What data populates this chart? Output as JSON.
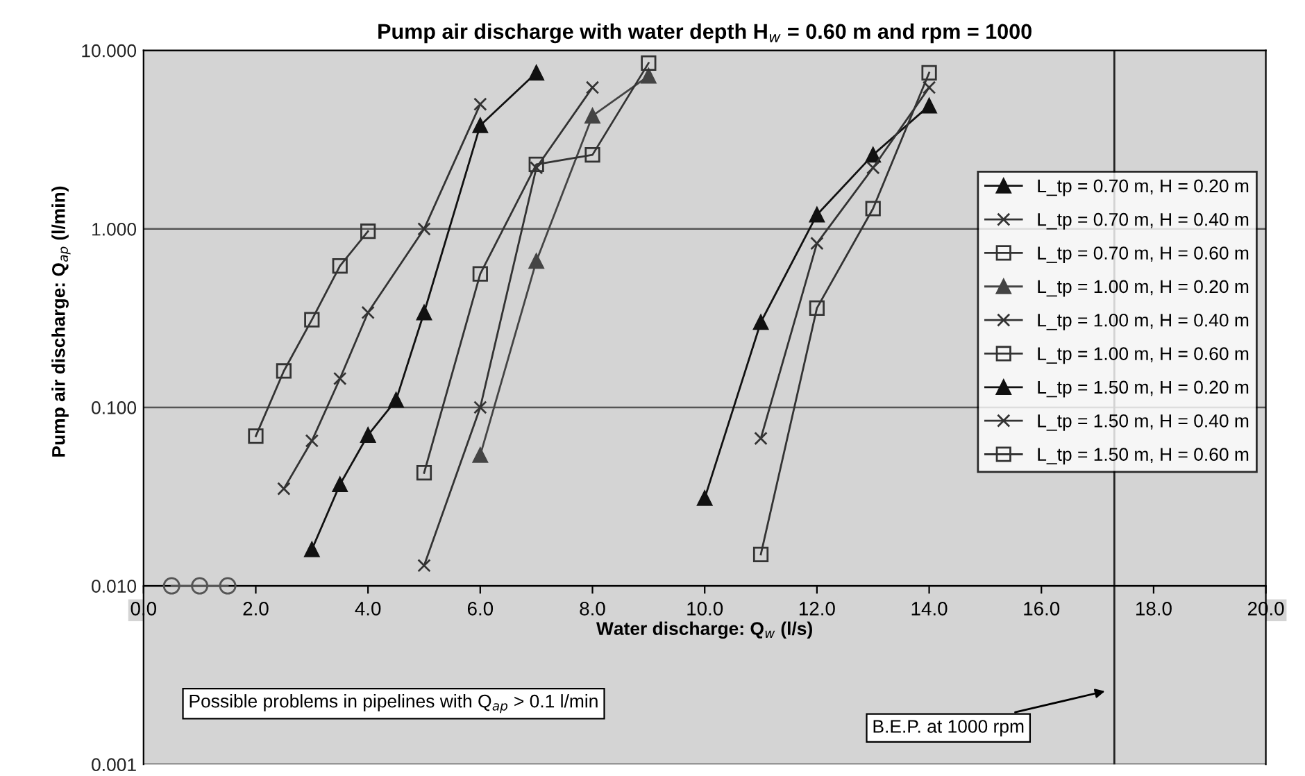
{
  "chart_data": {
    "type": "line",
    "title": "Pump air discharge with water depth H$_{w}$ = 0.60 m and rpm = 1000",
    "xlabel": "Water discharge: Q$_{w}$ (l/s)",
    "ylabel": "Pump air discharge: Q$_{ap}$ (l/min)",
    "log": "y",
    "grid": "y",
    "legend": "right",
    "xlim": [
      0,
      20
    ],
    "xticks": [
      {
        "value": 0,
        "label": "0.0"
      },
      {
        "value": 2,
        "label": "2.0"
      },
      {
        "value": 4,
        "label": "4.0"
      },
      {
        "value": 6,
        "label": "6.0"
      },
      {
        "value": 8,
        "label": "8.0"
      },
      {
        "value": 10,
        "label": "10.0"
      },
      {
        "value": 12,
        "label": "12.0"
      },
      {
        "value": 14,
        "label": "14.0"
      },
      {
        "value": 16,
        "label": "16.0"
      },
      {
        "value": 18,
        "label": "18.0"
      },
      {
        "value": 20,
        "label": "20.0"
      }
    ],
    "ylim": [
      0.001,
      10
    ],
    "yticks": [
      {
        "value": 0.001,
        "label": "0.001"
      },
      {
        "value": 0.01,
        "label": "0.010"
      },
      {
        "value": 0.1,
        "label": "0.100"
      },
      {
        "value": 1,
        "label": "1.000"
      },
      {
        "value": 10,
        "label": "10.000"
      }
    ],
    "series": [
      {
        "name": "L_tp = 0.70 m, H = 0.20 m",
        "color": "#111111",
        "marker": "triangle",
        "x": [
          3,
          3.5,
          4,
          4.5,
          5,
          6,
          7
        ],
        "values": [
          0.016,
          0.037,
          0.07,
          0.11,
          0.34,
          3.8,
          7.5
        ]
      },
      {
        "name": "L_tp = 0.70 m, H = 0.40 m",
        "color": "#333333",
        "marker": "cross",
        "x": [
          2.5,
          3,
          3.5,
          4,
          5,
          6
        ],
        "values": [
          0.035,
          0.065,
          0.145,
          0.34,
          1.0,
          5.0
        ]
      },
      {
        "name": "L_tp = 0.70 m, H = 0.60 m",
        "color": "#333333",
        "marker": "square",
        "x": [
          2,
          2.5,
          3,
          3.5,
          4
        ],
        "values": [
          0.069,
          0.16,
          0.31,
          0.62,
          0.97
        ]
      },
      {
        "name": "L_tp = 1.00 m, H = 0.20 m",
        "color": "#444444",
        "marker": "triangle",
        "x": [
          6,
          7,
          8,
          9
        ],
        "values": [
          0.054,
          0.66,
          4.3,
          7.2
        ]
      },
      {
        "name": "L_tp = 1.00 m, H = 0.40 m",
        "color": "#333333",
        "marker": "cross",
        "x": [
          5,
          6,
          7,
          8
        ],
        "values": [
          0.013,
          0.1,
          2.2,
          6.2
        ]
      },
      {
        "name": "L_tp = 1.00 m, H = 0.60 m",
        "color": "#333333",
        "marker": "square",
        "x": [
          5,
          6,
          7,
          8,
          9
        ],
        "values": [
          0.043,
          0.56,
          2.3,
          2.6,
          8.5
        ]
      },
      {
        "name": "L_tp = 1.50 m, H = 0.20 m",
        "color": "#111111",
        "marker": "triangle",
        "x": [
          10,
          11,
          12,
          13,
          14
        ],
        "values": [
          0.031,
          0.3,
          1.2,
          2.6,
          4.9
        ]
      },
      {
        "name": "L_tp = 1.50 m, H = 0.40 m",
        "color": "#333333",
        "marker": "cross",
        "x": [
          11,
          12,
          13,
          14
        ],
        "values": [
          0.067,
          0.83,
          2.2,
          6.2
        ]
      },
      {
        "name": "L_tp = 1.50 m, H = 0.60 m",
        "color": "#333333",
        "marker": "square",
        "x": [
          11,
          12,
          13,
          14
        ],
        "values": [
          0.015,
          0.36,
          1.3,
          7.5
        ]
      },
      {
        "color": "#555555",
        "marker": "circle",
        "x": [
          0.5,
          1,
          1.5
        ],
        "values": [
          0.01,
          0.01,
          0.01
        ]
      }
    ],
    "ref_lines": [
      {
        "axis": "x",
        "value": 17.3,
        "label": "B.E.P. at 1000 rpm",
        "color": "#222222"
      }
    ],
    "annotations": [
      "Possible problems in pipelines with Q$_{ap}$ > 0.1 l/min"
    ]
  }
}
